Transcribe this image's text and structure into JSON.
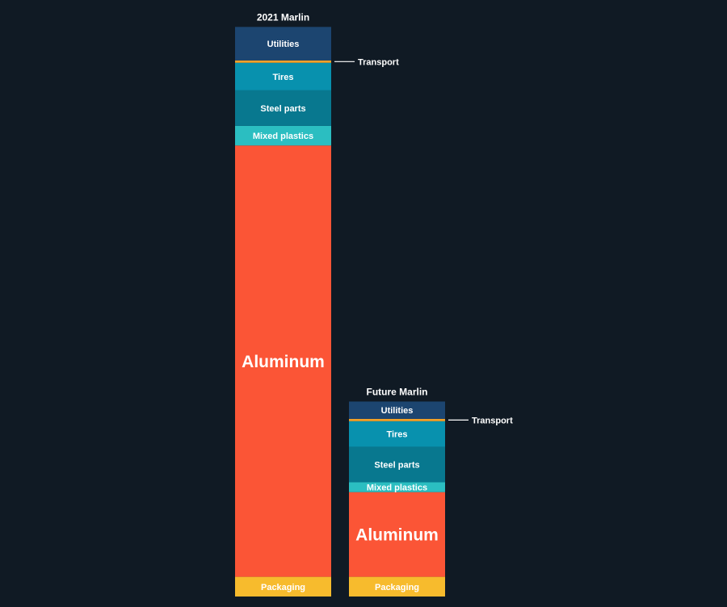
{
  "chart_data": {
    "type": "bar",
    "stacked": true,
    "bars": [
      {
        "name": "2021 Marlin",
        "segments": [
          {
            "label": "Packaging",
            "value": 5.0,
            "color": "#f7bb2d"
          },
          {
            "label": "Aluminum",
            "value": 109.5,
            "color": "#fb5536"
          },
          {
            "label": "Mixed plastics",
            "value": 5.0,
            "color": "#2bbec1"
          },
          {
            "label": "Steel parts",
            "value": 9.0,
            "color": "#08788f"
          },
          {
            "label": "Tires",
            "value": 7.0,
            "color": "#0891ae"
          },
          {
            "label": "Transport",
            "value": 0.6,
            "color": "#f0a12a"
          },
          {
            "label": "Utilities",
            "value": 8.5,
            "color": "#1c4570"
          }
        ]
      },
      {
        "name": "Future Marlin",
        "segments": [
          {
            "label": "Packaging",
            "value": 5.0,
            "color": "#f7bb2d"
          },
          {
            "label": "Aluminum",
            "value": 21.5,
            "color": "#fb5536"
          },
          {
            "label": "Mixed plastics",
            "value": 2.5,
            "color": "#2bbec1"
          },
          {
            "label": "Steel parts",
            "value": 9.0,
            "color": "#08788f"
          },
          {
            "label": "Tires",
            "value": 6.5,
            "color": "#0891ae"
          },
          {
            "label": "Transport",
            "value": 0.6,
            "color": "#f0a12a"
          },
          {
            "label": "Utilities",
            "value": 4.4,
            "color": "#1c4570"
          }
        ]
      }
    ],
    "callout_label": "Transport",
    "large_label_segment": "Aluminum"
  }
}
